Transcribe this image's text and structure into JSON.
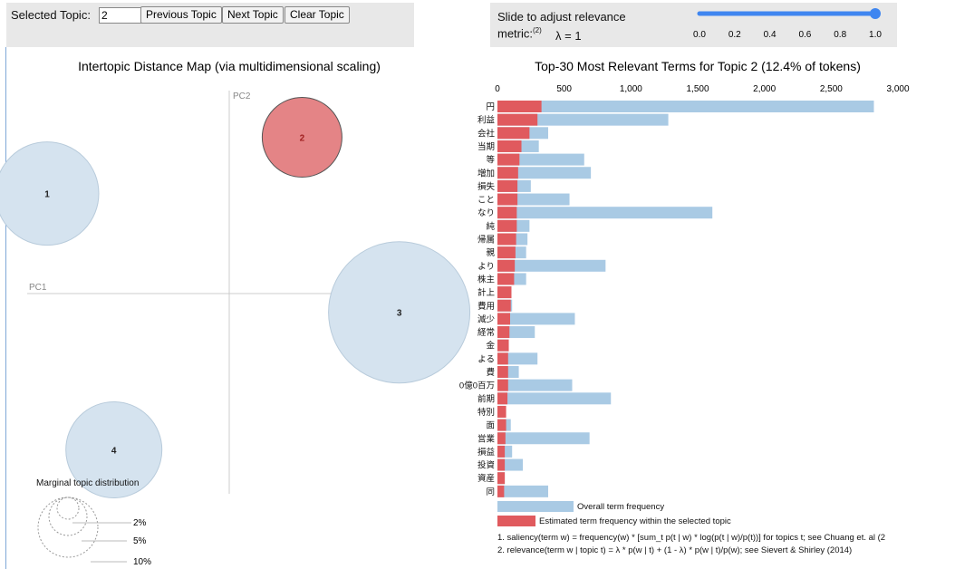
{
  "controls": {
    "selected_topic_label": "Selected Topic:",
    "selected_topic_value": "2",
    "prev_label": "Previous Topic",
    "next_label": "Next Topic",
    "clear_label": "Clear Topic",
    "slider_text_1": "Slide to adjust relevance",
    "slider_text_2": "metric:",
    "slider_sup": "(2)",
    "lambda_text": "λ = 1",
    "slider_ticks": [
      "0.0",
      "0.2",
      "0.4",
      "0.6",
      "0.8",
      "1.0"
    ],
    "slider_value": 1.0
  },
  "colors": {
    "overall": "#a9cae4",
    "topic": "#e05a5e",
    "bubble": "#d5e3ef",
    "selected_bubble": "#e48486",
    "slider": "#3f86f0"
  },
  "chart_data": [
    {
      "type": "scatter",
      "title": "Intertopic Distance Map (via multidimensional scaling)",
      "xlabel": "PC1",
      "ylabel": "PC2",
      "topics": [
        {
          "label": "1",
          "x": -0.3,
          "y": 0.16,
          "selected": false
        },
        {
          "label": "2",
          "x": 0.12,
          "y": 0.25,
          "selected": true
        },
        {
          "label": "3",
          "x": 0.28,
          "y": -0.03,
          "selected": false
        },
        {
          "label": "4",
          "x": -0.19,
          "y": -0.25,
          "selected": false
        }
      ],
      "marginal_title": "Marginal topic distribution",
      "marginal_labels": [
        "2%",
        "5%",
        "10%"
      ]
    },
    {
      "type": "bar",
      "title": "Top-30 Most Relevant Terms for Topic 2 (12.4% of tokens)",
      "xlim": [
        0,
        3000
      ],
      "xticks": [
        "0",
        "500",
        "1,000",
        "1,500",
        "2,000",
        "2,500",
        "3,000"
      ],
      "categories": [
        "円",
        "利益",
        "会社",
        "当期",
        "等",
        "増加",
        "損失",
        "こと",
        "なり",
        "純",
        "帰属",
        "親",
        "より",
        "株主",
        "計上",
        "費用",
        "減少",
        "経常",
        "金",
        "よる",
        "費",
        "0億0百万",
        "前期",
        "特別",
        "面",
        "営業",
        "損益",
        "投資",
        "資産",
        "同"
      ],
      "series": [
        {
          "name": "Overall term frequency",
          "values": [
            2820,
            1280,
            380,
            310,
            650,
            700,
            250,
            540,
            1610,
            240,
            225,
            215,
            810,
            215,
            105,
            110,
            580,
            280,
            85,
            300,
            160,
            560,
            850,
            60,
            100,
            690,
            110,
            190,
            55,
            380
          ]
        },
        {
          "name": "Estimated term frequency within the selected topic",
          "values": [
            330,
            300,
            240,
            180,
            165,
            155,
            150,
            150,
            145,
            145,
            140,
            135,
            130,
            125,
            105,
            100,
            95,
            90,
            85,
            80,
            80,
            80,
            75,
            65,
            65,
            60,
            55,
            55,
            55,
            50
          ]
        }
      ]
    }
  ],
  "notes": {
    "n1": "1. saliency(term w) = frequency(w) * [sum_t p(t | w) * log(p(t | w)/p(t))] for topics t; see Chuang et. al (2",
    "n2": "2. relevance(term w | topic t) = λ * p(w | t) + (1 - λ) * p(w | t)/p(w); see Sievert & Shirley (2014)"
  }
}
